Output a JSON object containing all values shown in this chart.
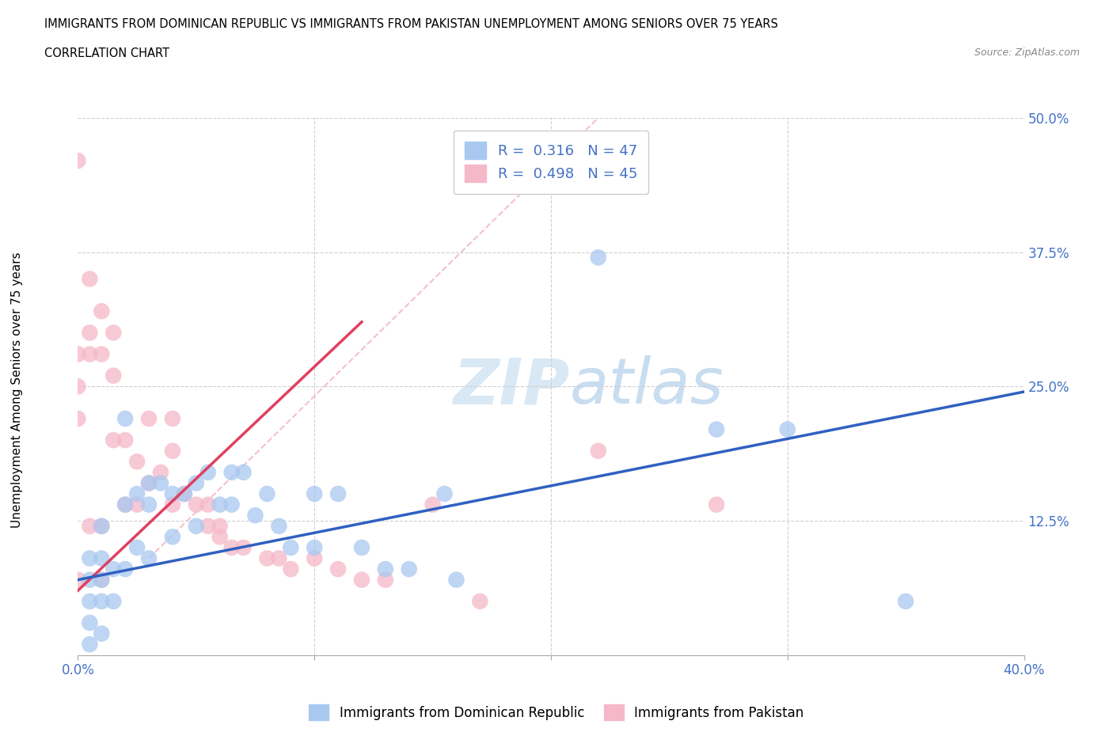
{
  "title_line1": "IMMIGRANTS FROM DOMINICAN REPUBLIC VS IMMIGRANTS FROM PAKISTAN UNEMPLOYMENT AMONG SENIORS OVER 75 YEARS",
  "title_line2": "CORRELATION CHART",
  "source_text": "Source: ZipAtlas.com",
  "ylabel": "Unemployment Among Seniors over 75 years",
  "xlim": [
    0.0,
    0.4
  ],
  "ylim": [
    0.0,
    0.5
  ],
  "xticks": [
    0.0,
    0.1,
    0.2,
    0.3,
    0.4
  ],
  "xticklabels": [
    "0.0%",
    "",
    "",
    "",
    "40.0%"
  ],
  "yticks_right": [
    0.0,
    0.125,
    0.25,
    0.375,
    0.5
  ],
  "yticklabels_right": [
    "",
    "12.5%",
    "25.0%",
    "37.5%",
    "50.0%"
  ],
  "blue_color": "#a8c8f0",
  "pink_color": "#f5b8c8",
  "blue_line_color": "#3060c0",
  "pink_line_color": "#e04060",
  "dashed_line_color": "#f5b8c8",
  "watermark_zip": "ZIP",
  "watermark_atlas": "atlas",
  "legend_r1": "R =  0.316   N = 47",
  "legend_r2": "R =  0.498   N = 45",
  "legend_label1": "Immigrants from Dominican Republic",
  "legend_label2": "Immigrants from Pakistan",
  "blue_scatter_x": [
    0.005,
    0.005,
    0.005,
    0.005,
    0.005,
    0.01,
    0.01,
    0.01,
    0.01,
    0.01,
    0.015,
    0.015,
    0.02,
    0.02,
    0.02,
    0.025,
    0.025,
    0.03,
    0.03,
    0.03,
    0.035,
    0.04,
    0.04,
    0.045,
    0.05,
    0.05,
    0.055,
    0.06,
    0.065,
    0.065,
    0.07,
    0.075,
    0.08,
    0.085,
    0.09,
    0.1,
    0.1,
    0.11,
    0.12,
    0.13,
    0.14,
    0.155,
    0.16,
    0.22,
    0.27,
    0.3,
    0.35
  ],
  "blue_scatter_y": [
    0.09,
    0.07,
    0.05,
    0.03,
    0.01,
    0.12,
    0.09,
    0.07,
    0.05,
    0.02,
    0.08,
    0.05,
    0.22,
    0.14,
    0.08,
    0.15,
    0.1,
    0.16,
    0.14,
    0.09,
    0.16,
    0.15,
    0.11,
    0.15,
    0.16,
    0.12,
    0.17,
    0.14,
    0.17,
    0.14,
    0.17,
    0.13,
    0.15,
    0.12,
    0.1,
    0.15,
    0.1,
    0.15,
    0.1,
    0.08,
    0.08,
    0.15,
    0.07,
    0.37,
    0.21,
    0.21,
    0.05
  ],
  "pink_scatter_x": [
    0.0,
    0.0,
    0.0,
    0.0,
    0.0,
    0.005,
    0.005,
    0.005,
    0.005,
    0.01,
    0.01,
    0.01,
    0.01,
    0.015,
    0.015,
    0.015,
    0.02,
    0.02,
    0.025,
    0.025,
    0.03,
    0.03,
    0.035,
    0.04,
    0.04,
    0.04,
    0.045,
    0.05,
    0.055,
    0.055,
    0.06,
    0.06,
    0.065,
    0.07,
    0.08,
    0.085,
    0.09,
    0.1,
    0.11,
    0.12,
    0.13,
    0.15,
    0.17,
    0.22,
    0.27
  ],
  "pink_scatter_y": [
    0.46,
    0.28,
    0.25,
    0.22,
    0.07,
    0.35,
    0.3,
    0.28,
    0.12,
    0.32,
    0.28,
    0.12,
    0.07,
    0.3,
    0.26,
    0.2,
    0.2,
    0.14,
    0.18,
    0.14,
    0.22,
    0.16,
    0.17,
    0.22,
    0.19,
    0.14,
    0.15,
    0.14,
    0.14,
    0.12,
    0.12,
    0.11,
    0.1,
    0.1,
    0.09,
    0.09,
    0.08,
    0.09,
    0.08,
    0.07,
    0.07,
    0.14,
    0.05,
    0.19,
    0.14
  ],
  "blue_line_x0": 0.0,
  "blue_line_y0": 0.07,
  "blue_line_x1": 0.4,
  "blue_line_y1": 0.245,
  "pink_line_x0": 0.0,
  "pink_line_y0": 0.06,
  "pink_line_x1": 0.12,
  "pink_line_y1": 0.31,
  "dashed_line_x0": 0.03,
  "dashed_line_y0": 0.09,
  "dashed_line_x1": 0.22,
  "dashed_line_y1": 0.5,
  "background_color": "#ffffff",
  "grid_color": "#d0d0d0"
}
